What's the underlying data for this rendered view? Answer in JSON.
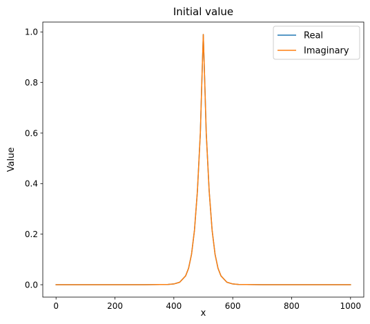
{
  "chart_data": {
    "type": "line",
    "title": "Initial value",
    "xlabel": "x",
    "ylabel": "Value",
    "xlim": [
      -45,
      1045
    ],
    "ylim": [
      -0.049,
      1.039
    ],
    "xticks": [
      0,
      200,
      400,
      600,
      800,
      1000
    ],
    "xtick_labels": [
      "0",
      "200",
      "400",
      "600",
      "800",
      "1000"
    ],
    "yticks": [
      0.0,
      0.2,
      0.4,
      0.6,
      0.8,
      1.0
    ],
    "ytick_labels": [
      "0.0",
      "0.2",
      "0.4",
      "0.6",
      "0.8",
      "1.0"
    ],
    "grid": false,
    "legend": "top-right",
    "series": [
      {
        "name": "Real",
        "color": "#1f77b4",
        "x": [
          0,
          100,
          200,
          300,
          380,
          400,
          420,
          440,
          450,
          460,
          470,
          480,
          490,
          495,
          500,
          505,
          510,
          520,
          530,
          540,
          550,
          560,
          580,
          600,
          620,
          700,
          800,
          900,
          1000
        ],
        "y": [
          0,
          0,
          0,
          0,
          0.001,
          0.003,
          0.01,
          0.035,
          0.065,
          0.12,
          0.215,
          0.37,
          0.6,
          0.8,
          0.99,
          0.8,
          0.6,
          0.37,
          0.215,
          0.12,
          0.065,
          0.035,
          0.01,
          0.003,
          0.001,
          0,
          0,
          0,
          0
        ]
      },
      {
        "name": "Imaginary",
        "color": "#ff7f0e",
        "x": [
          0,
          100,
          200,
          300,
          380,
          400,
          420,
          440,
          450,
          460,
          470,
          480,
          490,
          495,
          500,
          505,
          510,
          520,
          530,
          540,
          550,
          560,
          580,
          600,
          620,
          700,
          800,
          900,
          1000
        ],
        "y": [
          0,
          0,
          0,
          0,
          0.001,
          0.003,
          0.01,
          0.035,
          0.065,
          0.12,
          0.215,
          0.37,
          0.6,
          0.8,
          0.99,
          0.8,
          0.6,
          0.37,
          0.215,
          0.12,
          0.065,
          0.035,
          0.01,
          0.003,
          0.001,
          0,
          0,
          0,
          0
        ]
      }
    ]
  }
}
